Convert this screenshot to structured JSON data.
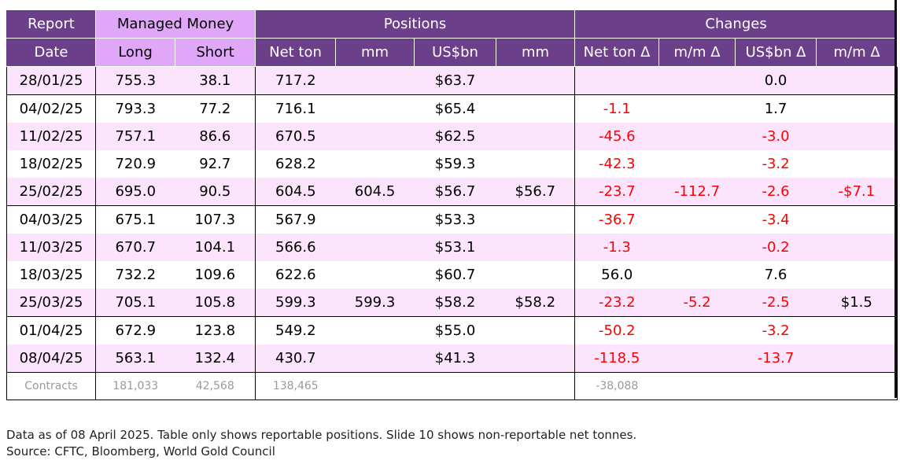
{
  "chart_data": {
    "type": "table",
    "header_groups": {
      "report": "Report",
      "managed_money": "Managed Money",
      "positions": "Positions",
      "changes": "Changes"
    },
    "columns": [
      "Date",
      "Long",
      "Short",
      "Net ton",
      "mm",
      "US$bn",
      "mm",
      "Net ton Δ",
      "m/m Δ",
      "US$bn Δ",
      "m/m Δ"
    ],
    "rows": [
      [
        "28/01/25",
        "755.3",
        "38.1",
        "717.2",
        "",
        "$63.7",
        "",
        "",
        "",
        "0.0",
        ""
      ],
      [
        "04/02/25",
        "793.3",
        "77.2",
        "716.1",
        "",
        "$65.4",
        "",
        "-1.1",
        "",
        "1.7",
        ""
      ],
      [
        "11/02/25",
        "757.1",
        "86.6",
        "670.5",
        "",
        "$62.5",
        "",
        "-45.6",
        "",
        "-3.0",
        ""
      ],
      [
        "18/02/25",
        "720.9",
        "92.7",
        "628.2",
        "",
        "$59.3",
        "",
        "-42.3",
        "",
        "-3.2",
        ""
      ],
      [
        "25/02/25",
        "695.0",
        "90.5",
        "604.5",
        "604.5",
        "$56.7",
        "$56.7",
        "-23.7",
        "-112.7",
        "-2.6",
        "-$7.1"
      ],
      [
        "04/03/25",
        "675.1",
        "107.3",
        "567.9",
        "",
        "$53.3",
        "",
        "-36.7",
        "",
        "-3.4",
        ""
      ],
      [
        "11/03/25",
        "670.7",
        "104.1",
        "566.6",
        "",
        "$53.1",
        "",
        "-1.3",
        "",
        "-0.2",
        ""
      ],
      [
        "18/03/25",
        "732.2",
        "109.6",
        "622.6",
        "",
        "$60.7",
        "",
        "56.0",
        "",
        "7.6",
        ""
      ],
      [
        "25/03/25",
        "705.1",
        "105.8",
        "599.3",
        "599.3",
        "$58.2",
        "$58.2",
        "-23.2",
        "-5.2",
        "-2.5",
        "$1.5"
      ],
      [
        "01/04/25",
        "672.9",
        "123.8",
        "549.2",
        "",
        "$55.0",
        "",
        "-50.2",
        "",
        "-3.2",
        ""
      ],
      [
        "08/04/25",
        "563.1",
        "132.4",
        "430.7",
        "",
        "$41.3",
        "",
        "-118.5",
        "",
        "-13.7",
        ""
      ]
    ],
    "contracts": [
      "Contracts",
      "181,033",
      "42,568",
      "138,465",
      "",
      "",
      "",
      "-38,088",
      "",
      "",
      ""
    ]
  },
  "notes": {
    "line1": "Data as of 08 April 2025. Table only shows reportable positions. Slide 10 shows non-reportable net tonnes.",
    "line2": "Source: CFTC, Bloomberg, World Gold Council"
  },
  "colors": {
    "header_bg": "#6b3f8a",
    "managed_money_bg": "#e0a6f8",
    "row_band": "#fde4fd",
    "negative": "#ff0000"
  }
}
